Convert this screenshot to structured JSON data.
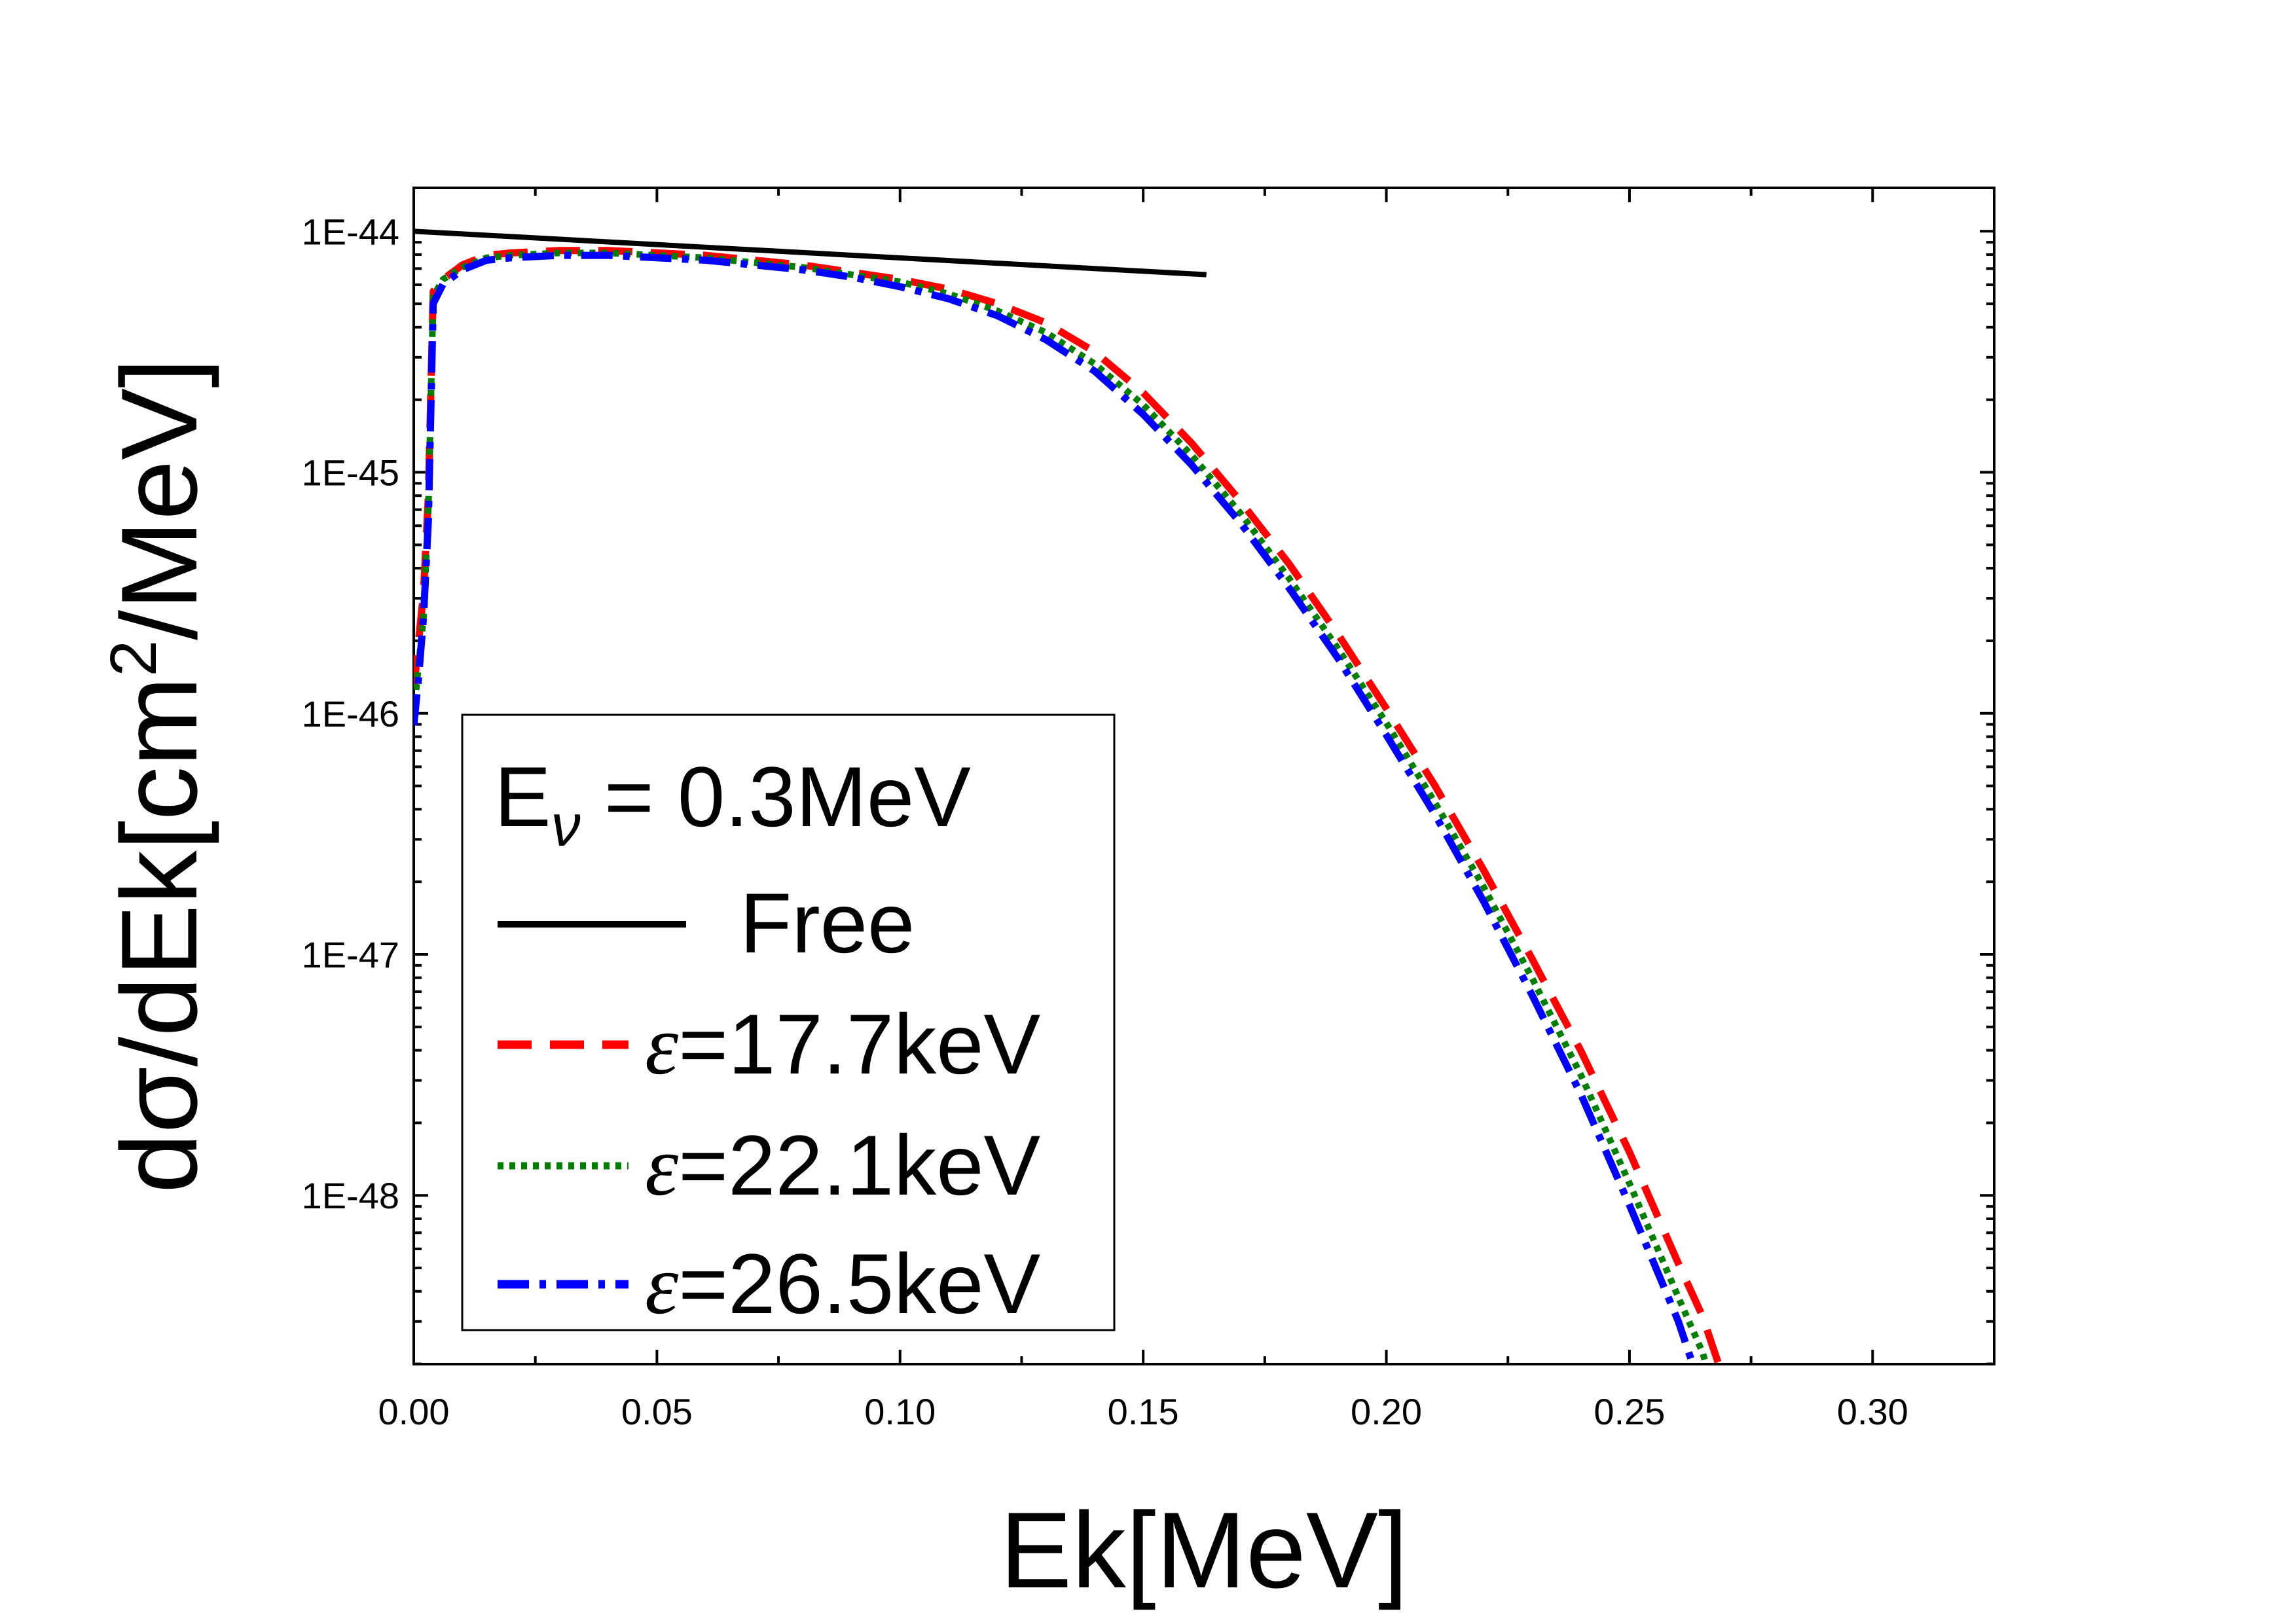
{
  "chart_data": {
    "type": "line",
    "title": "",
    "xlabel": "Ek[MeV]",
    "ylabel": "dσ/dEk[cm²/MeV]",
    "ylabel_parts": {
      "main": "dσ/dEk[cm",
      "sup": "2",
      "tail": "/MeV]"
    },
    "xscale": "linear",
    "yscale": "log",
    "xlim": [
      0.0,
      0.325
    ],
    "ylim_log10": [
      -48.7,
      -43.82
    ],
    "xticks": [
      0.0,
      0.05,
      0.1,
      0.15,
      0.2,
      0.25,
      0.3
    ],
    "xtick_labels": [
      "0.00",
      "0.05",
      "0.10",
      "0.15",
      "0.20",
      "0.25",
      "0.30"
    ],
    "yticks_log10": [
      -44,
      -45,
      -46,
      -47,
      -48
    ],
    "ytick_labels": [
      "1E-44",
      "1E-45",
      "1E-46",
      "1E-47",
      "1E-48"
    ],
    "legend": {
      "placement": "lower-left",
      "header_main": "E",
      "header_sub": "ν",
      "header_tail": " = 0.3MeV"
    },
    "series": [
      {
        "name": "Free",
        "label_prefix": "",
        "label": "Free",
        "color": "#000000",
        "dash": "none",
        "x": [
          0.0,
          0.163
        ],
        "log10_y": [
          -44.0,
          -44.18
        ]
      },
      {
        "name": "ε=17.7keV",
        "label_prefix": "ε",
        "label": "=17.7keV",
        "color": "#ff0000",
        "dash": "dashed",
        "x": [
          0.0,
          0.001,
          0.002,
          0.003,
          0.004,
          0.006,
          0.01,
          0.015,
          0.02,
          0.03,
          0.04,
          0.05,
          0.06,
          0.07,
          0.08,
          0.09,
          0.1,
          0.11,
          0.12,
          0.13,
          0.14,
          0.15,
          0.16,
          0.17,
          0.18,
          0.19,
          0.2,
          0.21,
          0.22,
          0.23,
          0.24,
          0.25,
          0.26,
          0.265,
          0.27,
          0.272
        ],
        "log10_y": [
          -45.9,
          -45.7,
          -45.5,
          -45.1,
          -44.25,
          -44.2,
          -44.14,
          -44.1,
          -44.09,
          -44.08,
          -44.08,
          -44.09,
          -44.1,
          -44.12,
          -44.14,
          -44.17,
          -44.2,
          -44.24,
          -44.3,
          -44.38,
          -44.5,
          -44.67,
          -44.88,
          -45.12,
          -45.38,
          -45.67,
          -45.98,
          -46.3,
          -46.65,
          -47.02,
          -47.4,
          -47.82,
          -48.28,
          -48.5,
          -48.8,
          -49.0
        ]
      },
      {
        "name": "ε=22.1keV",
        "label_prefix": "ε",
        "label": "=22.1keV",
        "color": "#007f00",
        "dash": "dotted",
        "x": [
          0.0,
          0.001,
          0.002,
          0.003,
          0.004,
          0.006,
          0.01,
          0.015,
          0.02,
          0.03,
          0.04,
          0.05,
          0.06,
          0.07,
          0.08,
          0.09,
          0.1,
          0.11,
          0.12,
          0.13,
          0.14,
          0.15,
          0.16,
          0.17,
          0.18,
          0.19,
          0.2,
          0.21,
          0.22,
          0.23,
          0.24,
          0.25,
          0.26,
          0.265,
          0.268
        ],
        "log10_y": [
          -46.0,
          -45.8,
          -45.6,
          -45.15,
          -44.27,
          -44.2,
          -44.15,
          -44.11,
          -44.1,
          -44.09,
          -44.09,
          -44.1,
          -44.11,
          -44.13,
          -44.15,
          -44.18,
          -44.21,
          -44.26,
          -44.33,
          -44.42,
          -44.55,
          -44.72,
          -44.93,
          -45.17,
          -45.44,
          -45.73,
          -46.04,
          -46.37,
          -46.72,
          -47.1,
          -47.5,
          -47.95,
          -48.42,
          -48.65,
          -48.85
        ]
      },
      {
        "name": "ε=26.5keV",
        "label_prefix": "ε",
        "label": "=26.5keV",
        "color": "#0000ff",
        "dash": "dashdot",
        "x": [
          0.0,
          0.001,
          0.002,
          0.003,
          0.004,
          0.006,
          0.01,
          0.015,
          0.02,
          0.03,
          0.04,
          0.05,
          0.06,
          0.07,
          0.08,
          0.09,
          0.1,
          0.11,
          0.12,
          0.13,
          0.14,
          0.15,
          0.16,
          0.17,
          0.18,
          0.19,
          0.2,
          0.21,
          0.22,
          0.23,
          0.24,
          0.25,
          0.26,
          0.263,
          0.265
        ],
        "log10_y": [
          -46.05,
          -45.85,
          -45.6,
          -45.2,
          -44.3,
          -44.22,
          -44.16,
          -44.12,
          -44.11,
          -44.1,
          -44.1,
          -44.11,
          -44.12,
          -44.14,
          -44.16,
          -44.19,
          -44.23,
          -44.28,
          -44.35,
          -44.45,
          -44.58,
          -44.76,
          -44.97,
          -45.21,
          -45.48,
          -45.77,
          -46.09,
          -46.42,
          -46.78,
          -47.17,
          -47.58,
          -48.04,
          -48.52,
          -48.7,
          -48.85
        ]
      }
    ]
  }
}
